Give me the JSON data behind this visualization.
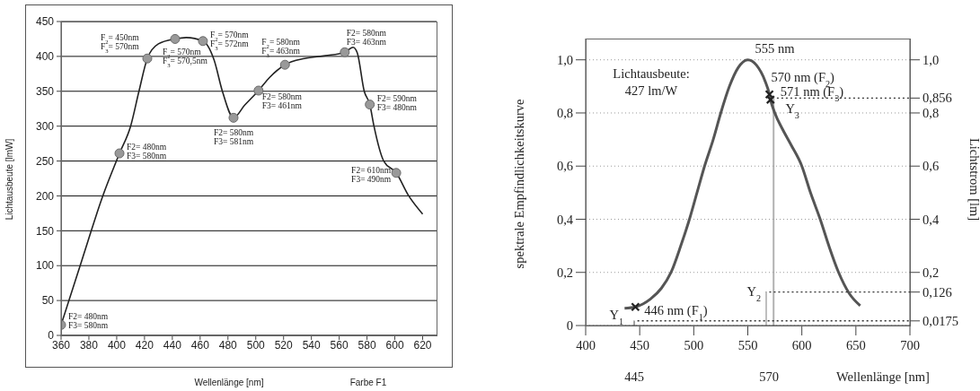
{
  "chart_data": [
    {
      "type": "line",
      "xlabel": "Wellenlänge [nm]",
      "ylabel": "Lichtausbeute [lmW]",
      "xlim": [
        360,
        630
      ],
      "xticks": [
        360,
        380,
        400,
        420,
        440,
        460,
        480,
        500,
        520,
        540,
        560,
        580,
        600,
        620
      ],
      "ylim": [
        0,
        450
      ],
      "yticks": [
        0,
        50,
        100,
        150,
        200,
        250,
        300,
        350,
        400,
        450
      ],
      "grid": "y",
      "line_style": "solid",
      "series": [
        {
          "color": "#222222",
          "x": [
            360,
            375,
            390,
            402,
            410,
            416,
            422,
            430,
            442,
            450,
            462,
            470,
            476,
            484,
            492,
            502,
            510,
            521,
            535,
            550,
            564,
            570,
            573,
            578,
            582,
            585,
            592,
            601,
            610,
            620
          ],
          "values": [
            15,
            108,
            200,
            261,
            300,
            350,
            397,
            418,
            425,
            427,
            422,
            395,
            350,
            312,
            330,
            351,
            370,
            388,
            397,
            401,
            406,
            413,
            405,
            350,
            331,
            300,
            250,
            233,
            200,
            174
          ]
        },
        {
          "type": "scatter",
          "color": "#999999",
          "marker": "circle",
          "x": [
            360,
            402,
            422,
            442,
            462,
            484,
            502,
            521,
            564,
            582,
            601
          ],
          "values": [
            15,
            261,
            397,
            425,
            422,
            312,
            351,
            388,
            406,
            331,
            233
          ]
        }
      ],
      "annotations": [
        {
          "text": "F2= 480nm\nF3= 580nm",
          "x": 360,
          "y": 15
        },
        {
          "text": "F2= 480nm\nF3= 580nm",
          "x": 402,
          "y": 261
        },
        {
          "text": "F$_{2}$= 450nm\nF$_{3}$= 570nm",
          "x": 422,
          "y": 397
        },
        {
          "text": "F$_{2}$= 570nm\nF$_{3}$= 570,5nm",
          "x": 442,
          "y": 425
        },
        {
          "text": "F$_{2}$= 570nm\nF$_{3}$= 572nm",
          "x": 462,
          "y": 422
        },
        {
          "text": "F2= 580nm\nF3= 581nm",
          "x": 484,
          "y": 312
        },
        {
          "text": "F2= 580nm\nF3= 461nm",
          "x": 502,
          "y": 351
        },
        {
          "text": "F$_{2}$= 580nm\nF$_{3}$= 463nm",
          "x": 521,
          "y": 388
        },
        {
          "text": "F2= 580nm\nF3= 463nm",
          "x": 564,
          "y": 406
        },
        {
          "text": "F2= 590nm\nF3= 480nm",
          "x": 582,
          "y": 331
        },
        {
          "text": "F2= 610nm\nF3= 490nm",
          "x": 601,
          "y": 233
        },
        "Farbe F1"
      ]
    },
    {
      "type": "line",
      "xlabel": "Wellenlänge [nm]",
      "ylabel": "spektrale Empfindlichkeitskurve",
      "y2label": "Lichtstrom [lm]",
      "xlim": [
        400,
        700
      ],
      "xticks": [
        400,
        450,
        500,
        550,
        600,
        650,
        700
      ],
      "ylim": [
        0,
        1.08
      ],
      "yticks": [
        0,
        {
          "value": 0.2,
          "label": "0,2"
        },
        {
          "value": 0.4,
          "label": "0,4"
        },
        {
          "value": 0.6,
          "label": "0,6"
        },
        {
          "value": 0.8,
          "label": "0,8"
        },
        {
          "value": 1,
          "label": "1,0"
        }
      ],
      "y2lim": [
        0,
        1.08
      ],
      "y2ticks": [
        {
          "value": 0.0175,
          "label": "0,0175"
        },
        {
          "value": 0.126,
          "label": "0,126"
        },
        {
          "value": 0.2,
          "label": "0,2"
        },
        {
          "value": 0.4,
          "label": "0,4"
        },
        {
          "value": 0.6,
          "label": "0,6"
        },
        {
          "value": 0.8,
          "label": "0,8"
        },
        {
          "value": 0.856,
          "label": "0,856"
        },
        {
          "value": 1,
          "label": "1,0"
        }
      ],
      "grid": "y",
      "line_style": "solid",
      "series": [
        {
          "color": "#555555",
          "x": [
            436,
            446,
            460,
            470,
            479,
            488,
            496,
            503,
            510,
            518,
            525,
            533,
            541,
            550,
            558,
            566,
            570,
            571,
            575,
            582,
            590,
            600,
            608,
            617,
            625,
            634,
            644,
            654
          ],
          "values": [
            0.065,
            0.07,
            0.1,
            0.14,
            0.2,
            0.3,
            0.4,
            0.5,
            0.6,
            0.7,
            0.8,
            0.9,
            0.97,
            1.0,
            0.98,
            0.92,
            0.87,
            0.85,
            0.8,
            0.74,
            0.68,
            0.6,
            0.5,
            0.4,
            0.3,
            0.2,
            0.12,
            0.075
          ]
        },
        {
          "type": "bar",
          "axis": "y2",
          "x": [
            445,
            567,
            574
          ],
          "values": [
            0.0175,
            0.126,
            0.856
          ],
          "colors": [
            "#777777",
            "#eeeeee",
            "#c0c0c0"
          ]
        },
        {
          "type": "scatter",
          "color": "#222222",
          "marker": "cross",
          "x": [
            446,
            570,
            571
          ],
          "values": [
            0.07,
            0.87,
            0.85
          ]
        }
      ],
      "ref_lines": [
        {
          "axis": "y2",
          "value": 0.0175,
          "label": null,
          "line_style": "dotted",
          "color": "#333333"
        },
        {
          "axis": "y2",
          "value": 0.126,
          "label": null,
          "line_style": "dotted",
          "color": "#333333"
        },
        {
          "axis": "y2",
          "value": 0.856,
          "label": null,
          "line_style": "dotted",
          "color": "#333333"
        }
      ],
      "annotations": [
        {
          "text": "555 nm",
          "x": 550,
          "y": 1.0
        },
        {
          "text": "570 nm (F$_{2}$)",
          "x": 570,
          "y": 0.87
        },
        {
          "text": "571 nm (F$_{3}$)",
          "x": 571,
          "y": 0.85
        },
        {
          "text": "446  nm (F$_{1}$)",
          "x": 446,
          "y": 0.07
        },
        {
          "text": "Y$_{1}$",
          "x": 445,
          "y": 0.0175
        },
        {
          "text": "Y$_{2}$",
          "x": 567,
          "y": 0.126
        },
        {
          "text": "Y$_{3}$",
          "x": 574,
          "y": 0.856
        },
        "Lichtausbeute:\n427 lm/W",
        "445",
        "570"
      ]
    }
  ]
}
